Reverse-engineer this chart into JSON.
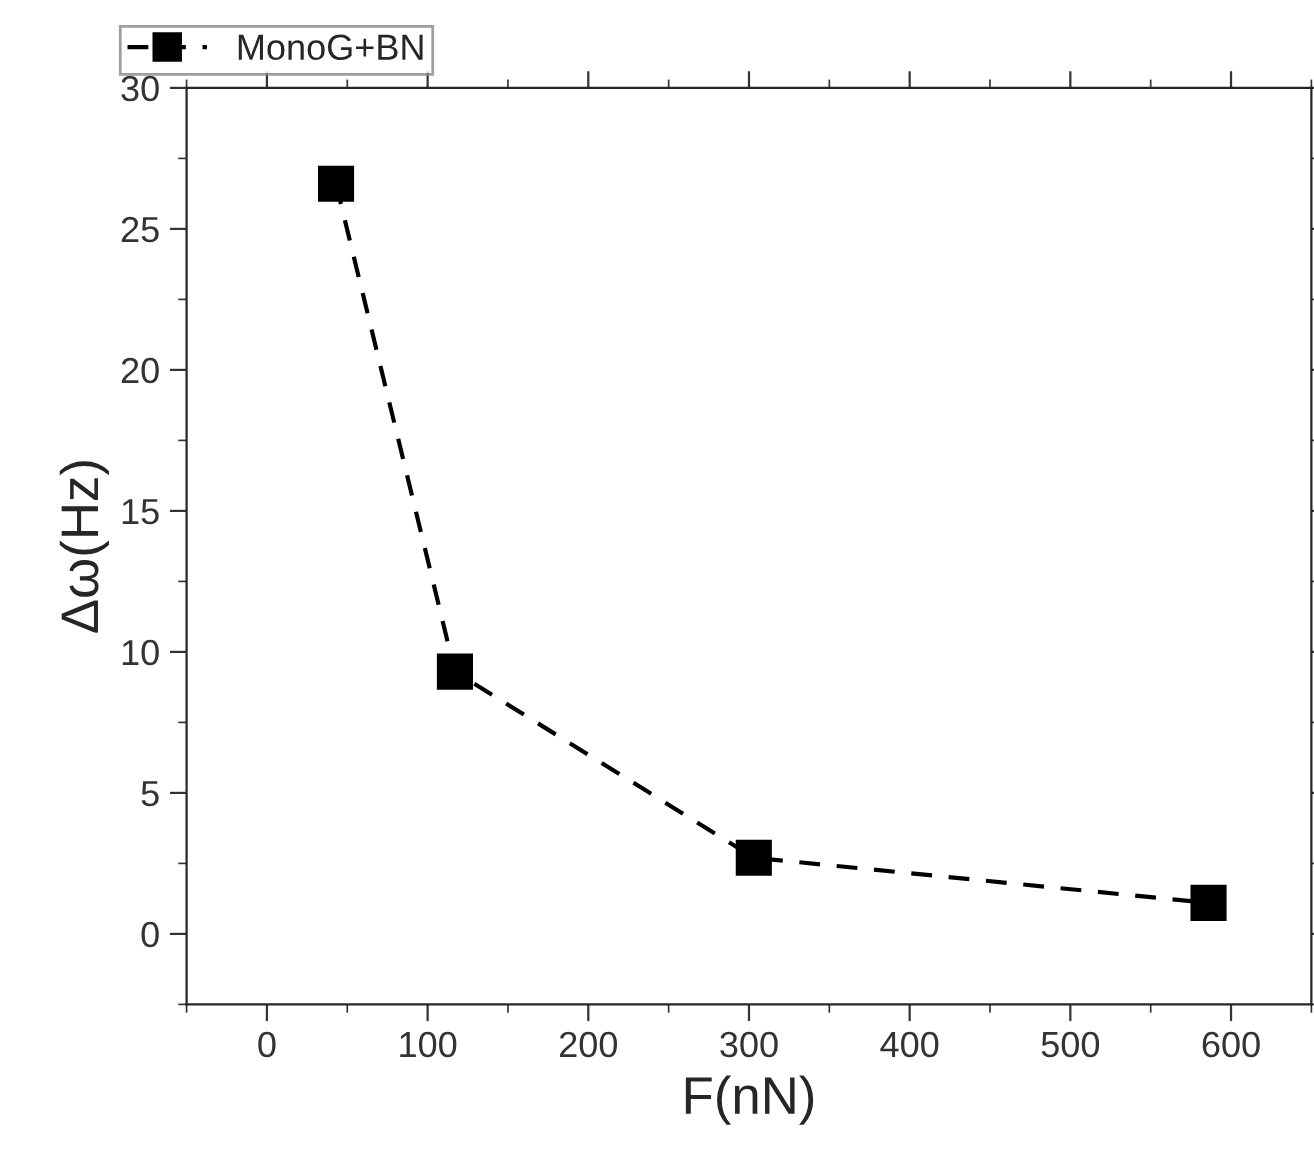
{
  "chart_data": {
    "type": "line",
    "xlabel": "F(nN)",
    "ylabel": "Δω(Hz)",
    "x": [
      43,
      117,
      303,
      586
    ],
    "series": [
      {
        "name": "MonoG+BN",
        "color": "#000000",
        "values": [
          26.6,
          9.3,
          2.7,
          1.1
        ]
      }
    ],
    "xlim": [
      -50,
      650
    ],
    "xticks": [
      0,
      100,
      200,
      300,
      400,
      500,
      600
    ],
    "ylim": [
      -2.5,
      30
    ],
    "yticks": [
      0,
      5,
      10,
      15,
      20,
      25,
      30
    ],
    "marker": "square",
    "line_style": "dashed",
    "legend": "top left",
    "grid": false
  }
}
